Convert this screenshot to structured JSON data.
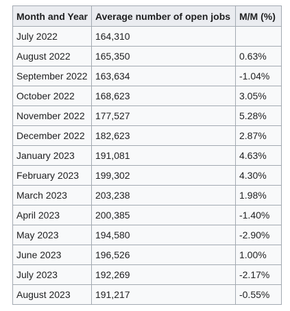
{
  "table": {
    "header": [
      "Month and Year",
      "Average number of open jobs",
      "M/M (%)"
    ],
    "rows": [
      [
        "July 2022",
        "164,310",
        null
      ],
      [
        "August 2022",
        "165,350",
        "0.63%"
      ],
      [
        "September 2022",
        "163,634",
        "-1.04%"
      ],
      [
        "October 2022",
        "168,623",
        "3.05%"
      ],
      [
        "November 2022",
        "177,527",
        "5.28%"
      ],
      [
        "December 2022",
        "182,623",
        "2.87%"
      ],
      [
        "January 2023",
        "191,081",
        "4.63%"
      ],
      [
        "February 2023",
        "199,302",
        "4.30%"
      ],
      [
        "March 2023",
        "203,238",
        "1.98%"
      ],
      [
        "April 2023",
        "200,385",
        "-1.40%"
      ],
      [
        "May 2023",
        "194,580",
        "-2.90%"
      ],
      [
        "June 2023",
        "196,526",
        "1.00%"
      ],
      [
        "July 2023",
        "192,269",
        "-2.17%"
      ],
      [
        "August 2023",
        "191,217",
        "-0.55%"
      ]
    ]
  }
}
